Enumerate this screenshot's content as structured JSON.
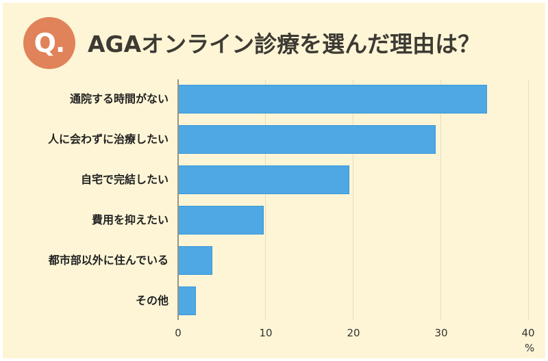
{
  "header": {
    "badge": "Q.",
    "title": "AGAオンライン診療を選んだ理由は？"
  },
  "colors": {
    "background": "#fdf5d6",
    "bar": "#4ea8e4",
    "badge": "#e0825a",
    "title": "#3d3a33"
  },
  "axis": {
    "ticks": [
      "0",
      "10",
      "20",
      "30",
      "40"
    ],
    "unit": "%"
  },
  "chart_data": {
    "type": "bar",
    "orientation": "horizontal",
    "title": "AGAオンライン診療を選んだ理由は？",
    "categories": [
      "通院する時間がない",
      "人に会わずに治療したい",
      "自宅で完結したい",
      "費用を抑えたい",
      "都市部以外に住んでいる",
      "その他"
    ],
    "values": [
      35.3,
      29.4,
      19.6,
      9.8,
      3.9,
      2.0
    ],
    "xlabel": "%",
    "ylabel": "",
    "xlim": [
      0,
      40
    ],
    "xticks": [
      0,
      10,
      20,
      30,
      40
    ],
    "grid": true,
    "legend": null
  }
}
